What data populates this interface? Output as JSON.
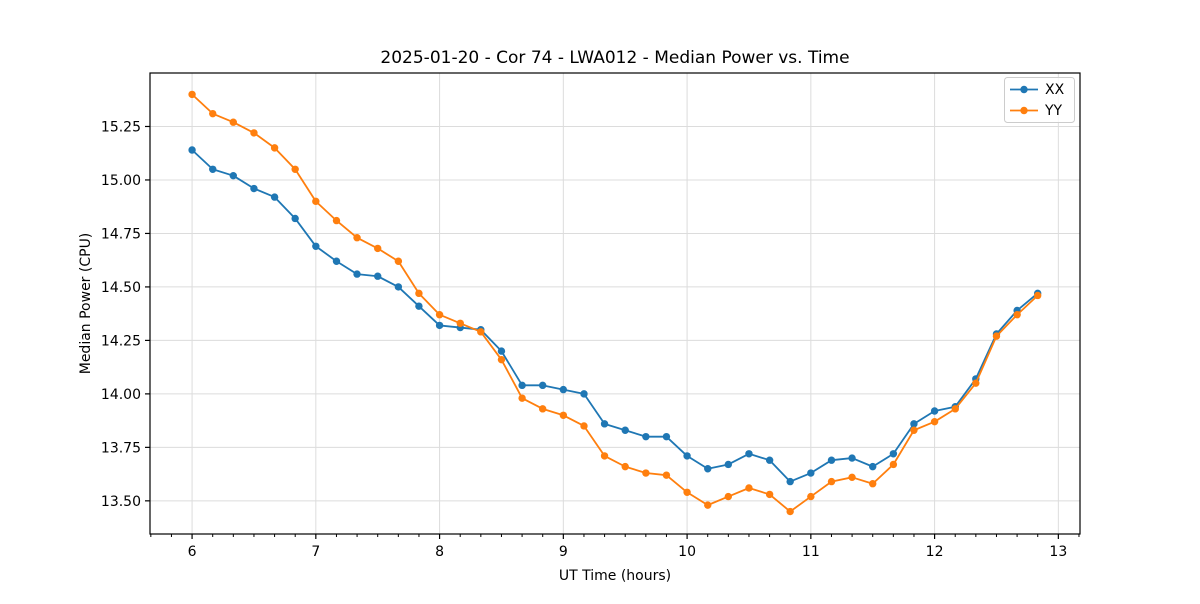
{
  "chart_data": {
    "type": "line",
    "title": "2025-01-20 - Cor 74 - LWA012 - Median Power vs. Time",
    "xlabel": "UT Time (hours)",
    "ylabel": "Median Power (CPU)",
    "xlim": [
      5.66,
      13.175
    ],
    "ylim": [
      13.345,
      15.5
    ],
    "x_ticks": [
      6,
      7,
      8,
      9,
      10,
      11,
      12,
      13
    ],
    "x_tick_labels": [
      "6",
      "7",
      "8",
      "9",
      "10",
      "11",
      "12",
      "13"
    ],
    "x_minor_tick_step_hours": 0.166667,
    "y_ticks": [
      13.5,
      13.75,
      14.0,
      14.25,
      14.5,
      14.75,
      15.0,
      15.25
    ],
    "y_tick_labels": [
      "13.50",
      "13.75",
      "14.00",
      "14.25",
      "14.50",
      "14.75",
      "15.00",
      "15.25"
    ],
    "grid": true,
    "legend_position": "upper right",
    "x": [
      6.0,
      6.167,
      6.333,
      6.5,
      6.667,
      6.833,
      7.0,
      7.167,
      7.333,
      7.5,
      7.667,
      7.833,
      8.0,
      8.167,
      8.333,
      8.5,
      8.667,
      8.833,
      9.0,
      9.167,
      9.333,
      9.5,
      9.667,
      9.833,
      10.0,
      10.167,
      10.333,
      10.5,
      10.667,
      10.833,
      11.0,
      11.167,
      11.333,
      11.5,
      11.667,
      11.833,
      12.0,
      12.167,
      12.333,
      12.5,
      12.667,
      12.833
    ],
    "series": [
      {
        "name": "XX",
        "color": "#1f77b4",
        "values": [
          15.14,
          15.05,
          15.02,
          14.96,
          14.92,
          14.82,
          14.69,
          14.62,
          14.56,
          14.55,
          14.5,
          14.41,
          14.32,
          14.31,
          14.3,
          14.2,
          14.04,
          14.04,
          14.02,
          14.0,
          13.86,
          13.83,
          13.8,
          13.8,
          13.71,
          13.65,
          13.67,
          13.72,
          13.69,
          13.59,
          13.63,
          13.69,
          13.7,
          13.66,
          13.72,
          13.86,
          13.92,
          13.94,
          14.07,
          14.28,
          14.39,
          14.47
        ]
      },
      {
        "name": "YY",
        "color": "#ff7f0e",
        "values": [
          15.4,
          15.31,
          15.27,
          15.22,
          15.15,
          15.05,
          14.9,
          14.81,
          14.73,
          14.68,
          14.62,
          14.47,
          14.37,
          14.33,
          14.29,
          14.16,
          13.98,
          13.93,
          13.9,
          13.85,
          13.71,
          13.66,
          13.63,
          13.62,
          13.54,
          13.48,
          13.52,
          13.56,
          13.53,
          13.45,
          13.52,
          13.59,
          13.61,
          13.58,
          13.67,
          13.83,
          13.87,
          13.93,
          14.05,
          14.27,
          14.37,
          14.46
        ]
      }
    ]
  },
  "colors": {
    "background": "#ffffff",
    "grid": "#dcdcdc",
    "spine": "#000000",
    "tick": "#000000",
    "legend_border": "#cccccc",
    "legend_background": "#ffffff"
  }
}
